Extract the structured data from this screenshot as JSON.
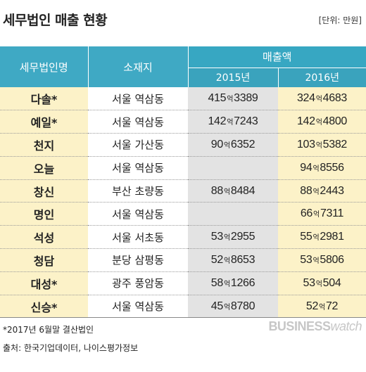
{
  "title": "세무법인 매출 현황",
  "unit": "[단위: 만원]",
  "headers": {
    "name": "세무법인명",
    "location": "소재지",
    "sales": "매출액",
    "year1": "2015년",
    "year2": "2016년"
  },
  "rows": [
    {
      "name": "다솔*",
      "location": "서울 역삼동",
      "v2015_eok": "415",
      "v2015_man": "3389",
      "v2016_eok": "324",
      "v2016_man": "4683"
    },
    {
      "name": "예일*",
      "location": "서울 역삼동",
      "v2015_eok": "142",
      "v2015_man": "7243",
      "v2016_eok": "142",
      "v2016_man": "4800"
    },
    {
      "name": "천지",
      "location": "서울 가산동",
      "v2015_eok": "90",
      "v2015_man": "6352",
      "v2016_eok": "103",
      "v2016_man": "5382"
    },
    {
      "name": "오늘",
      "location": "서울 역삼동",
      "v2015_eok": "",
      "v2015_man": "",
      "v2016_eok": "94",
      "v2016_man": "8556"
    },
    {
      "name": "창신",
      "location": "부산 초량동",
      "v2015_eok": "88",
      "v2015_man": "8484",
      "v2016_eok": "88",
      "v2016_man": "2443"
    },
    {
      "name": "명인",
      "location": "서울 역삼동",
      "v2015_eok": "",
      "v2015_man": "",
      "v2016_eok": "66",
      "v2016_man": "7311"
    },
    {
      "name": "석성",
      "location": "서울 서초동",
      "v2015_eok": "53",
      "v2015_man": "2955",
      "v2016_eok": "55",
      "v2016_man": "2981"
    },
    {
      "name": "청담",
      "location": "분당 삼평동",
      "v2015_eok": "52",
      "v2015_man": "8653",
      "v2016_eok": "53",
      "v2016_man": "5806"
    },
    {
      "name": "대성*",
      "location": "광주 풍암동",
      "v2015_eok": "58",
      "v2015_man": "1266",
      "v2016_eok": "53",
      "v2016_man": "504"
    },
    {
      "name": "신승*",
      "location": "서울 역삼동",
      "v2015_eok": "45",
      "v2015_man": "8780",
      "v2016_eok": "52",
      "v2016_man": "72"
    }
  ],
  "eok_unit": "억",
  "footnote": "*2017년 6월말 결산법인",
  "source": "출처: 한국기업데이터, 나이스평가정보",
  "logo": {
    "bold": "BUSINESS",
    "light": "watch"
  }
}
